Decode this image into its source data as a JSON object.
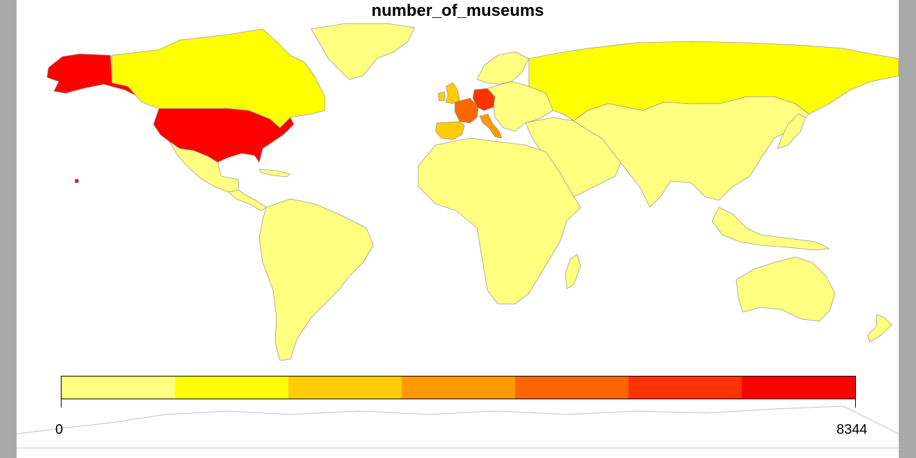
{
  "title": "number_of_museums",
  "legend": {
    "min_label": "0",
    "max_label": "8344",
    "colors": [
      "#ffff80",
      "#ffff00",
      "#ffcc00",
      "#ff9900",
      "#ff6600",
      "#ff3300",
      "#ff0000"
    ]
  },
  "map_colors": {
    "default": "#ffff80",
    "canada": "#ffff00",
    "russia": "#ffff00",
    "greenland": "#ffff80",
    "usa": "#ff0000",
    "alaska": "#ff0000",
    "hawaii": "#ff0000",
    "uk": "#ffcc00",
    "spain": "#ffcc00",
    "france": "#ff6600",
    "germany": "#ff3300",
    "italy": "#ff9900",
    "border": "#9a9a9a",
    "antarctica_outline": "#c0c0c0"
  }
}
